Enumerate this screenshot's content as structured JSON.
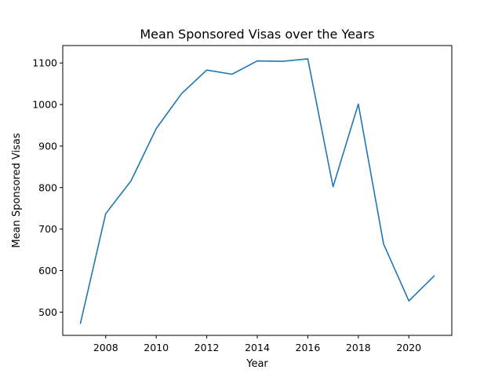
{
  "chart_data": {
    "type": "line",
    "title": "Mean Sponsored Visas over the Years",
    "xlabel": "Year",
    "ylabel": "Mean Sponsored Visas",
    "xlim": [
      2006.3,
      2021.7
    ],
    "ylim": [
      444,
      1142
    ],
    "xticks": [
      2008,
      2010,
      2012,
      2014,
      2016,
      2018,
      2020
    ],
    "yticks": [
      500,
      600,
      700,
      800,
      900,
      1000,
      1100
    ],
    "grid": false,
    "series": [
      {
        "color": "#1f77b4",
        "x": [
          2007,
          2008,
          2009,
          2010,
          2011,
          2012,
          2013,
          2014,
          2015,
          2016,
          2017,
          2018,
          2019,
          2020,
          2021
        ],
        "y": [
          473,
          737,
          816,
          942,
          1026,
          1083,
          1073,
          1105,
          1104,
          1110,
          802,
          1001,
          664,
          527,
          587
        ]
      }
    ]
  }
}
